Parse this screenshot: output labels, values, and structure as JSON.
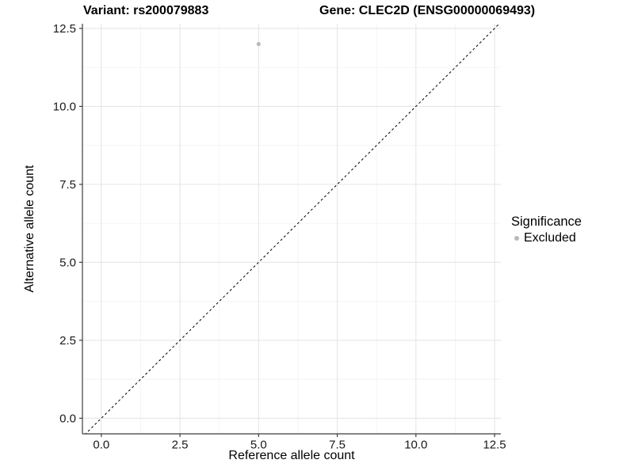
{
  "chart_data": {
    "type": "scatter",
    "title_left": "Variant: rs200079883",
    "title_right": "Gene: CLEC2D (ENSG00000069493)",
    "xlabel": "Reference allele count",
    "ylabel": "Alternative allele count",
    "xlim": [
      -0.6,
      12.7
    ],
    "ylim": [
      -0.5,
      12.65
    ],
    "xticks": {
      "values": [
        0,
        2.5,
        5,
        7.5,
        10,
        12.5
      ],
      "labels": [
        "0.0",
        "2.5",
        "5.0",
        "7.5",
        "10.0",
        "12.5"
      ]
    },
    "yticks": {
      "values": [
        0,
        2.5,
        5,
        7.5,
        10,
        12.5
      ],
      "labels": [
        "0.0",
        "2.5",
        "5.0",
        "7.5",
        "10.0",
        "12.5"
      ]
    },
    "minor_ticks": [
      1.25,
      3.75,
      6.25,
      8.75,
      11.25
    ],
    "grid": {
      "on": true,
      "major_color": "#e5e5e5",
      "minor_color": "#f2f2f2"
    },
    "identity_line": {
      "equation": "y = x",
      "style": "dashed",
      "color": "#000000",
      "dash": [
        3,
        3
      ]
    },
    "series": [
      {
        "name": "Excluded",
        "color": "#b9b9b9",
        "radius": 2.6,
        "points": [
          {
            "x": 5,
            "y": 12
          }
        ]
      }
    ],
    "legend": {
      "title": "Significance",
      "position": "right",
      "items": [
        {
          "label": "Excluded",
          "color": "#b9b9b9",
          "marker": "point"
        }
      ]
    },
    "axis_color": "#3c3c3c",
    "tick_text_color": "#1a1a1a"
  }
}
